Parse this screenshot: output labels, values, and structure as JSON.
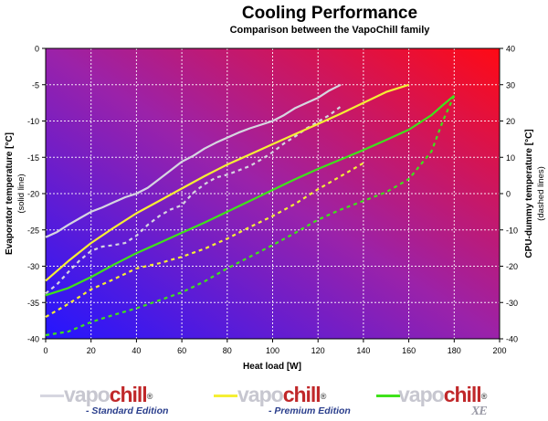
{
  "chart_data": {
    "type": "line",
    "title": "Cooling Performance",
    "subtitle": "Comparison between the VapoChill family",
    "xlabel": "Heat load [W]",
    "ylabel": "Evaporator temperature [°C]",
    "ylabel_note": "(solid line)",
    "y2label": "CPU-dummy temperature [°C]",
    "y2label_note": "(dashed lines)",
    "xlim": [
      0,
      200
    ],
    "ylim": [
      -40,
      0
    ],
    "y2lim": [
      -40,
      40
    ],
    "xticks": [
      "0",
      "20",
      "40",
      "60",
      "80",
      "100",
      "120",
      "140",
      "160",
      "180",
      "200"
    ],
    "yticks": [
      "0",
      "-5",
      "-10",
      "-15",
      "-20",
      "-25",
      "-30",
      "-35",
      "-40"
    ],
    "y2ticks": [
      "40",
      "30",
      "20",
      "10",
      "0",
      "-10",
      "-20",
      "-30",
      "-40"
    ],
    "grid": true,
    "series": [
      {
        "name": "Standard Edition",
        "color": "#d6d6e0",
        "evaporator": {
          "x": [
            0,
            5,
            10,
            15,
            20,
            25,
            30,
            35,
            40,
            45,
            50,
            55,
            60,
            65,
            70,
            75,
            80,
            85,
            90,
            95,
            100,
            105,
            110,
            115,
            120,
            125,
            130
          ],
          "y": [
            -26,
            -25.3,
            -24.3,
            -23.4,
            -22.5,
            -21.9,
            -21.2,
            -20.5,
            -20,
            -19.2,
            -18,
            -16.8,
            -15.6,
            -14.8,
            -13.8,
            -13,
            -12.3,
            -11.6,
            -11,
            -10.5,
            -10,
            -9.2,
            -8.2,
            -7.5,
            -6.8,
            -5.8,
            -5
          ]
        },
        "cpu_dummy": {
          "x": [
            0,
            5,
            10,
            15,
            20,
            25,
            30,
            35,
            40,
            45,
            50,
            55,
            60,
            65,
            70,
            75,
            80,
            85,
            90,
            95,
            100,
            105,
            110,
            115,
            120,
            125,
            130
          ],
          "y": [
            -27.5,
            -25,
            -21.6,
            -18.4,
            -15.8,
            -14.6,
            -14.2,
            -13.6,
            -11.6,
            -8.6,
            -6.2,
            -4.4,
            -3.2,
            0.2,
            2.6,
            4.4,
            5.2,
            6.4,
            7.6,
            9.4,
            11.4,
            13.8,
            15.8,
            18,
            19.8,
            21.6,
            24
          ]
        }
      },
      {
        "name": "Premium Edition",
        "color": "#f5ef34",
        "evaporator": {
          "x": [
            0,
            10,
            20,
            30,
            40,
            50,
            60,
            70,
            80,
            90,
            100,
            110,
            120,
            130,
            140,
            150,
            160
          ],
          "y": [
            -32,
            -29.3,
            -26.8,
            -24.7,
            -22.7,
            -21,
            -19.3,
            -17.6,
            -16,
            -14.6,
            -13.2,
            -11.8,
            -10.4,
            -9,
            -7.5,
            -6,
            -5
          ]
        },
        "cpu_dummy": {
          "x": [
            0,
            10,
            20,
            30,
            40,
            50,
            60,
            70,
            80,
            90,
            100,
            110,
            120,
            130,
            140
          ],
          "y": [
            -34,
            -30.4,
            -26.4,
            -23.6,
            -20.6,
            -19.2,
            -17.4,
            -15.2,
            -12.4,
            -9.2,
            -6.2,
            -2.8,
            1.2,
            4.8,
            8.4
          ]
        }
      },
      {
        "name": "XE",
        "color": "#3fe21a",
        "evaporator": {
          "x": [
            0,
            10,
            20,
            30,
            40,
            50,
            60,
            70,
            80,
            90,
            100,
            110,
            120,
            130,
            140,
            150,
            160,
            170,
            175,
            180
          ],
          "y": [
            -34,
            -33,
            -31.5,
            -29.8,
            -28.2,
            -26.8,
            -25.4,
            -24,
            -22.5,
            -21,
            -19.5,
            -18,
            -16.6,
            -15.3,
            -14,
            -12.6,
            -11.2,
            -9.2,
            -7.8,
            -6.5
          ]
        },
        "cpu_dummy": {
          "x": [
            0,
            10,
            20,
            30,
            40,
            50,
            60,
            70,
            80,
            90,
            100,
            110,
            120,
            130,
            140,
            150,
            160,
            170,
            175,
            180
          ],
          "y": [
            -39,
            -38,
            -35.4,
            -33.4,
            -31.6,
            -29.4,
            -27.2,
            -24.2,
            -20.6,
            -17.4,
            -14.2,
            -10.8,
            -7.2,
            -4.4,
            -2,
            0.4,
            4,
            11.6,
            20,
            27
          ]
        }
      }
    ]
  },
  "legend": {
    "brand_part1": "vapo",
    "brand_part2": "chill",
    "registered": "®",
    "items": [
      {
        "edition": "- Standard Edition",
        "line_color": "#d6d6e0"
      },
      {
        "edition": "- Premium Edition",
        "line_color": "#f5ef34"
      },
      {
        "edition": "XE",
        "line_color": "#3fe21a"
      }
    ]
  }
}
